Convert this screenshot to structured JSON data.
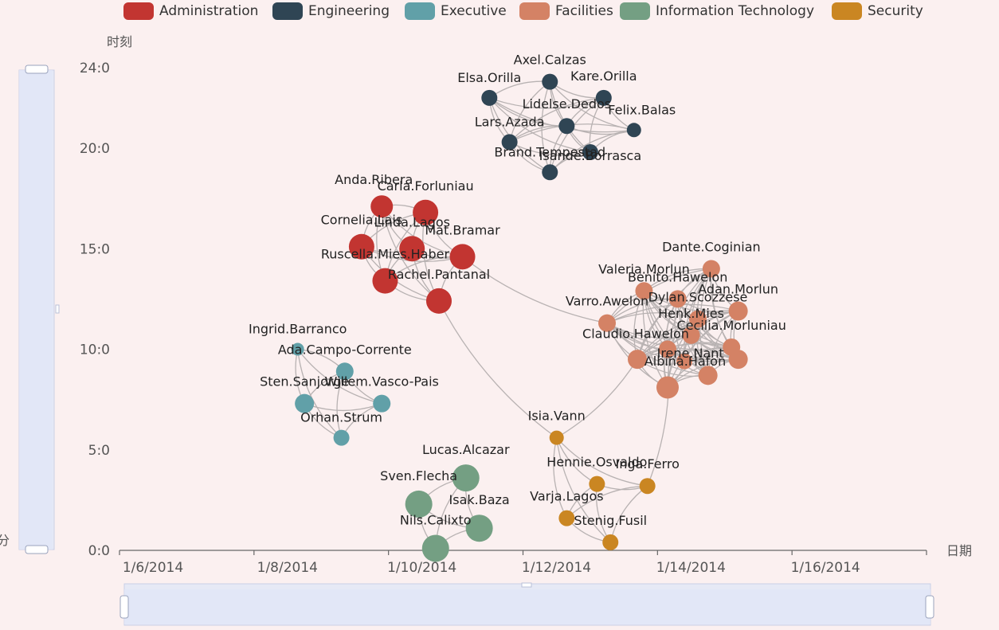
{
  "chart_data": {
    "type": "graph-scatter",
    "x_axis": {
      "name": "日期",
      "ticks": [
        "1/6/2014",
        "1/8/2014",
        "1/10/2014",
        "1/12/2014",
        "1/14/2014",
        "1/16/2014"
      ],
      "range_days": [
        0,
        12
      ]
    },
    "y_axis": {
      "name": "时刻",
      "ticks": [
        "0:0",
        "5:0",
        "10:0",
        "15:0",
        "20:0",
        "24:0"
      ],
      "range_hours": [
        0,
        24
      ]
    },
    "legend": {
      "position": "top",
      "items": [
        {
          "name": "Administration",
          "color": "#c23531"
        },
        {
          "name": "Engineering",
          "color": "#2f4554"
        },
        {
          "name": "Executive",
          "color": "#61a0a8"
        },
        {
          "name": "Facilities",
          "color": "#d48265"
        },
        {
          "name": "Information Technology",
          "color": "#749f83"
        },
        {
          "name": "Security",
          "color": "#ca8622"
        }
      ]
    },
    "slider_labels": {
      "y_handle_bottom": "分"
    },
    "nodes": [
      {
        "name": "Axel.Calzas",
        "group": "Engineering",
        "x": 6.4,
        "y": 23.3,
        "size": 10,
        "label_dx": 0,
        "label_dy": -22
      },
      {
        "name": "Elsa.Orilla",
        "group": "Engineering",
        "x": 5.5,
        "y": 22.5,
        "size": 10,
        "label_dx": 0,
        "label_dy": -20
      },
      {
        "name": "Kare.Orilla",
        "group": "Engineering",
        "x": 7.2,
        "y": 22.5,
        "size": 10,
        "label_dx": 0,
        "label_dy": -22
      },
      {
        "name": "Lidelse.Dedos",
        "group": "Engineering",
        "x": 6.65,
        "y": 21.1,
        "size": 10,
        "label_dx": 0,
        "label_dy": -22
      },
      {
        "name": "Felix.Balas",
        "group": "Engineering",
        "x": 7.65,
        "y": 20.9,
        "size": 9,
        "label_dx": 10,
        "label_dy": -20
      },
      {
        "name": "Lars.Azada",
        "group": "Engineering",
        "x": 5.8,
        "y": 20.3,
        "size": 10,
        "label_dx": 0,
        "label_dy": -20
      },
      {
        "name": "Isande.Borrasca",
        "group": "Engineering",
        "x": 7.0,
        "y": 19.8,
        "size": 10,
        "label_dx": 0,
        "label_dy": 10
      },
      {
        "name": "Brand.Tempestad",
        "group": "Engineering",
        "x": 6.4,
        "y": 18.8,
        "size": 10,
        "label_dx": 0,
        "label_dy": -20
      },
      {
        "name": "Ada.Campo-Corrente",
        "group": "Executive",
        "x": 3.35,
        "y": 8.9,
        "size": 11,
        "label_dx": 0,
        "label_dy": -22
      },
      {
        "name": "Ingrid.Barranco",
        "group": "Executive",
        "x": 2.65,
        "y": 10.0,
        "size": 8,
        "label_dx": 0,
        "label_dy": -20
      },
      {
        "name": "Sten.Sanjorge",
        "group": "Executive",
        "x": 2.75,
        "y": 7.3,
        "size": 12,
        "label_dx": 0,
        "label_dy": -22
      },
      {
        "name": "Willem.Vasco-Pais",
        "group": "Executive",
        "x": 3.9,
        "y": 7.3,
        "size": 11,
        "label_dx": 0,
        "label_dy": -22
      },
      {
        "name": "Orhan.Strum",
        "group": "Executive",
        "x": 3.3,
        "y": 5.6,
        "size": 10,
        "label_dx": 0,
        "label_dy": -20
      },
      {
        "name": "Carla.Forluniau",
        "group": "Administration",
        "x": 4.55,
        "y": 16.8,
        "size": 16,
        "label_dx": 0,
        "label_dy": -28
      },
      {
        "name": "Anda.Ribera",
        "group": "Administration",
        "x": 3.9,
        "y": 17.1,
        "size": 14,
        "label_dx": -10,
        "label_dy": -28
      },
      {
        "name": "Cornelia.Lais",
        "group": "Administration",
        "x": 3.6,
        "y": 15.1,
        "size": 16,
        "label_dx": 0,
        "label_dy": -28
      },
      {
        "name": "Linda.Lagos",
        "group": "Administration",
        "x": 4.35,
        "y": 15.0,
        "size": 16,
        "label_dx": 0,
        "label_dy": -28
      },
      {
        "name": "Mat.Bramar",
        "group": "Administration",
        "x": 5.1,
        "y": 14.6,
        "size": 16,
        "label_dx": 0,
        "label_dy": -28
      },
      {
        "name": "Ruscella.Mies.Haber",
        "group": "Administration",
        "x": 3.95,
        "y": 13.4,
        "size": 16,
        "label_dx": 0,
        "label_dy": -28
      },
      {
        "name": "Rachel.Pantanal",
        "group": "Administration",
        "x": 4.75,
        "y": 12.4,
        "size": 16,
        "label_dx": 0,
        "label_dy": -28
      },
      {
        "name": "Dante.Coginian",
        "group": "Facilities",
        "x": 8.8,
        "y": 14.0,
        "size": 11,
        "label_dx": 0,
        "label_dy": -22
      },
      {
        "name": "Valeria.Morlun",
        "group": "Facilities",
        "x": 7.8,
        "y": 12.9,
        "size": 11,
        "label_dx": 0,
        "label_dy": -22
      },
      {
        "name": "Benito.Hawelon",
        "group": "Facilities",
        "x": 8.3,
        "y": 12.5,
        "size": 11,
        "label_dx": 0,
        "label_dy": -22
      },
      {
        "name": "Adan.Morlun",
        "group": "Facilities",
        "x": 9.2,
        "y": 11.9,
        "size": 12,
        "label_dx": 0,
        "label_dy": -22
      },
      {
        "name": "Dylan.Scozzese",
        "group": "Facilities",
        "x": 8.6,
        "y": 11.5,
        "size": 11,
        "label_dx": 0,
        "label_dy": -22
      },
      {
        "name": "Varro.Awelon",
        "group": "Facilities",
        "x": 7.25,
        "y": 11.3,
        "size": 11,
        "label_dx": 0,
        "label_dy": -22
      },
      {
        "name": "Henk.Mies",
        "group": "Facilities",
        "x": 8.5,
        "y": 10.7,
        "size": 11,
        "label_dx": 0,
        "label_dy": -22
      },
      {
        "name": "Cecilia.Morluniau",
        "group": "Facilities",
        "x": 9.1,
        "y": 10.1,
        "size": 11,
        "label_dx": 0,
        "label_dy": -22
      },
      {
        "name": "Claudio.Hawelon",
        "group": "Facilities",
        "x": 8.15,
        "y": 10.0,
        "size": 11,
        "label_dx": -40,
        "label_dy": -14
      },
      {
        "name": "Irene.Nant",
        "group": "Facilities",
        "x": 9.2,
        "y": 9.5,
        "size": 12,
        "label_dx": -60,
        "label_dy": -2
      },
      {
        "name": "Albina.Hafon",
        "group": "Facilities",
        "x": 7.7,
        "y": 9.5,
        "size": 12,
        "label_dx": 60,
        "label_dy": 8
      },
      {
        "name": "_f1",
        "group": "Facilities",
        "x": 8.75,
        "y": 8.7,
        "size": 12,
        "label_dx": 0,
        "label_dy": 0,
        "hidden_label": true
      },
      {
        "name": "_f2",
        "group": "Facilities",
        "x": 8.15,
        "y": 8.1,
        "size": 14,
        "label_dx": 0,
        "label_dy": 0,
        "hidden_label": true
      },
      {
        "name": "_f3",
        "group": "Facilities",
        "x": 8.4,
        "y": 9.4,
        "size": 10,
        "label_dx": 0,
        "label_dy": 0,
        "hidden_label": true
      },
      {
        "name": "Isia.Vann",
        "group": "Security",
        "x": 6.5,
        "y": 5.6,
        "size": 9,
        "label_dx": 0,
        "label_dy": -22
      },
      {
        "name": "Hennie.Osvaldo",
        "group": "Security",
        "x": 7.1,
        "y": 3.3,
        "size": 10,
        "label_dx": 0,
        "label_dy": -22
      },
      {
        "name": "Inga.Ferro",
        "group": "Security",
        "x": 7.85,
        "y": 3.2,
        "size": 10,
        "label_dx": 0,
        "label_dy": -22
      },
      {
        "name": "Varja.Lagos",
        "group": "Security",
        "x": 6.65,
        "y": 1.6,
        "size": 10,
        "label_dx": 0,
        "label_dy": -22
      },
      {
        "name": "Stenig.Fusil",
        "group": "Security",
        "x": 7.3,
        "y": 0.4,
        "size": 10,
        "label_dx": 0,
        "label_dy": -22
      },
      {
        "name": "Lucas.Alcazar",
        "group": "Information Technology",
        "x": 5.15,
        "y": 3.6,
        "size": 17,
        "label_dx": 0,
        "label_dy": -30
      },
      {
        "name": "Sven.Flecha",
        "group": "Information Technology",
        "x": 4.45,
        "y": 2.3,
        "size": 17,
        "label_dx": 0,
        "label_dy": -30
      },
      {
        "name": "Isak.Baza",
        "group": "Information Technology",
        "x": 5.35,
        "y": 1.1,
        "size": 17,
        "label_dx": 0,
        "label_dy": -30
      },
      {
        "name": "Nils.Calixto",
        "group": "Information Technology",
        "x": 4.7,
        "y": 0.1,
        "size": 17,
        "label_dx": 0,
        "label_dy": -30
      }
    ],
    "cross_links": [
      {
        "source": "Mat.Bramar",
        "target": "Varro.Awelon"
      },
      {
        "source": "Rachel.Pantanal",
        "target": "Isia.Vann"
      },
      {
        "source": "Isia.Vann",
        "target": "Albina.Hafon"
      },
      {
        "source": "Inga.Ferro",
        "target": "Claudio.Hawelon"
      }
    ]
  }
}
